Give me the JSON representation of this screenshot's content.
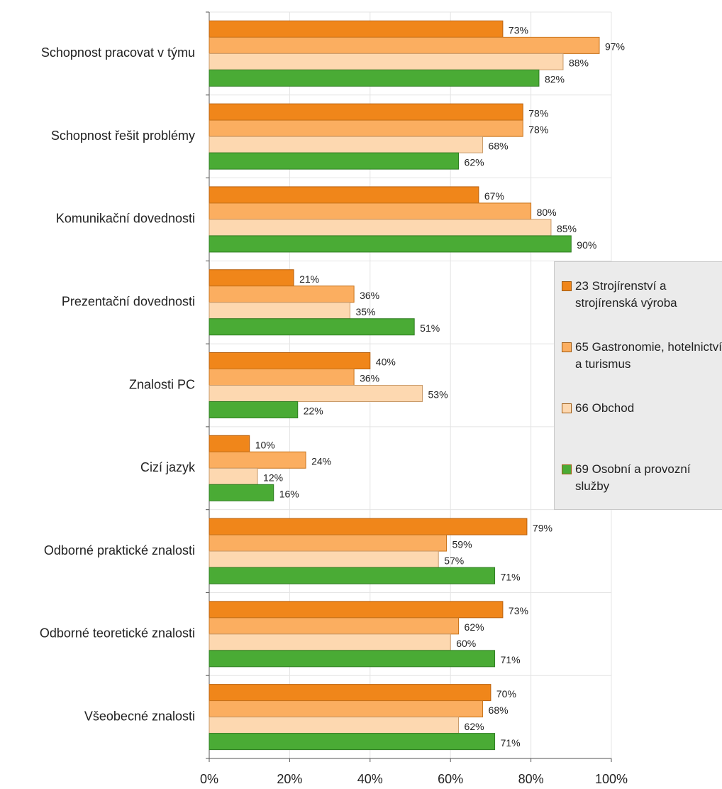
{
  "chart_data": {
    "type": "bar",
    "orientation": "horizontal",
    "categories": [
      "Schopnost pracovat v týmu",
      "Schopnost řešit problémy",
      "Komunikační dovednosti",
      "Prezentační dovednosti",
      "Znalosti PC",
      "Cizí jazyk",
      "Odborné praktické znalosti",
      "Odborné teoretické znalosti",
      "Všeobecné znalosti"
    ],
    "series": [
      {
        "name": "23 Strojírenství a strojírenská výroba",
        "color": "#f0861a",
        "values": [
          73,
          78,
          67,
          21,
          40,
          10,
          79,
          73,
          70
        ],
        "value_labels": [
          "73%",
          "78%",
          "67%",
          "21%",
          "40%",
          "10%",
          "79%",
          "73%",
          "70%"
        ]
      },
      {
        "name": "65 Gastronomie, hotelnictví a turismus",
        "color": "#fbae60",
        "values": [
          97,
          78,
          80,
          36,
          36,
          24,
          59,
          62,
          68
        ],
        "value_labels": [
          "97%",
          "78%",
          "80%",
          "36%",
          "36%",
          "24%",
          "59%",
          "62%",
          "68%"
        ]
      },
      {
        "name": "66 Obchod",
        "color": "#fdd8b0",
        "values": [
          88,
          68,
          85,
          35,
          53,
          12,
          57,
          60,
          62
        ],
        "value_labels": [
          "88%",
          "68%",
          "85%",
          "35%",
          "53%",
          "12%",
          "57%",
          "60%",
          "62%"
        ]
      },
      {
        "name": "69 Osobní a provozní služby",
        "color": "#4aab35",
        "values": [
          82,
          62,
          90,
          51,
          22,
          16,
          71,
          71,
          71
        ],
        "value_labels": [
          "82%",
          "62%",
          "90%",
          "51%",
          "22%",
          "16%",
          "71%",
          "71%",
          "71%"
        ]
      }
    ],
    "xlim": [
      0,
      100
    ],
    "xticks": [
      {
        "value": 0,
        "label": "0%"
      },
      {
        "value": 20,
        "label": "20%"
      },
      {
        "value": 40,
        "label": "40%"
      },
      {
        "value": 60,
        "label": "60%"
      },
      {
        "value": 80,
        "label": "80%"
      },
      {
        "value": 100,
        "label": "100%"
      }
    ],
    "grid": true
  }
}
